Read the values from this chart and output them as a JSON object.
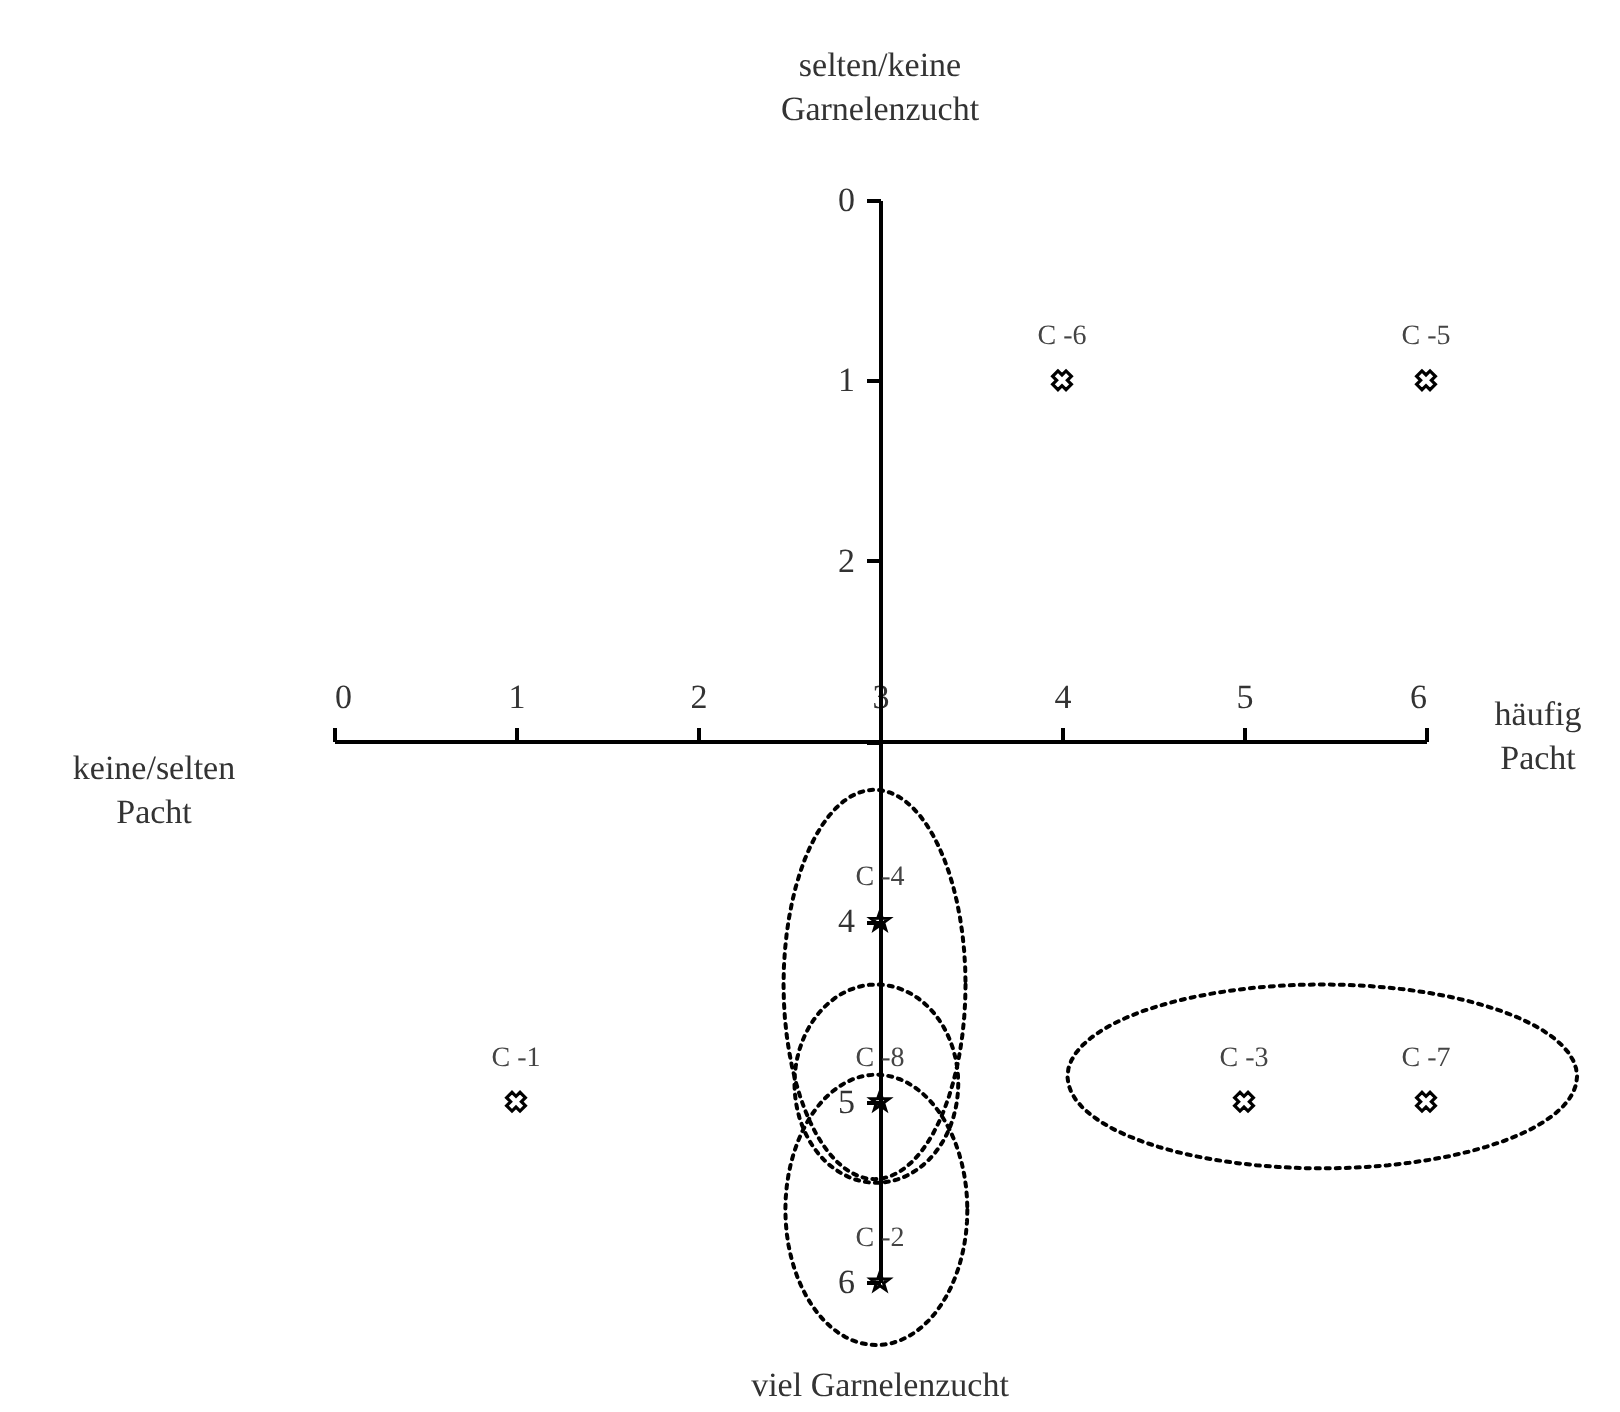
{
  "chart_data": {
    "type": "scatter",
    "ylabel": "selten/keine Garnelenzucht",
    "xlabel": "häufig Pacht",
    "annotations": [
      "keine/selten Pacht",
      "viel Garnelenzucht",
      {
        "text": "C -1",
        "x": 1,
        "y": 5
      },
      {
        "text": "C -2",
        "x": 3,
        "y": 6
      },
      {
        "text": "C -3",
        "x": 5,
        "y": 5
      },
      {
        "text": "C -4",
        "x": 3,
        "y": 4
      },
      {
        "text": "C -5",
        "x": 6,
        "y": 1
      },
      {
        "text": "C -6",
        "x": 4,
        "y": 1
      },
      {
        "text": "C -7",
        "x": 6,
        "y": 5
      },
      {
        "text": "C -8",
        "x": 3,
        "y": 5
      }
    ],
    "series": [
      {
        "color": "#000000",
        "marker": "cross",
        "x": [
          1,
          5,
          6,
          6,
          4
        ],
        "values": [
          5,
          5,
          1,
          5,
          1
        ]
      },
      {
        "color": "#000000",
        "marker": "star",
        "x": [
          3,
          3,
          3
        ],
        "values": [
          4,
          5,
          6
        ]
      }
    ],
    "xlim": [
      0,
      6
    ],
    "ylim": [
      6,
      0
    ],
    "xticks": [
      0,
      1,
      2,
      3,
      4,
      5,
      6
    ],
    "yticks": [
      0,
      1,
      2,
      {
        "value": 3,
        "label": null
      },
      4,
      5,
      6
    ]
  }
}
